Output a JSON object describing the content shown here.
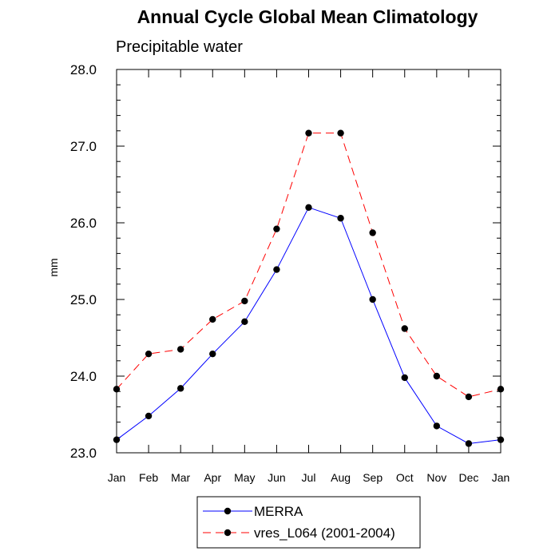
{
  "chart_data": {
    "type": "line",
    "title": "Annual Cycle Global Mean Climatology",
    "subtitle": "Precipitable water",
    "xlabel": "",
    "ylabel": "mm",
    "categories": [
      "Jan",
      "Feb",
      "Mar",
      "Apr",
      "May",
      "Jun",
      "Jul",
      "Aug",
      "Sep",
      "Oct",
      "Nov",
      "Dec",
      "Jan"
    ],
    "ylim": [
      23.0,
      28.0
    ],
    "yticks": [
      "23.0",
      "24.0",
      "25.0",
      "26.0",
      "27.0",
      "28.0"
    ],
    "grid": false,
    "legend_position": "bottom",
    "series": [
      {
        "name": "MERRA",
        "color": "#0000ff",
        "dash": "solid",
        "marker": "filled-circle",
        "values": [
          23.17,
          23.48,
          23.84,
          24.29,
          24.71,
          25.39,
          26.2,
          26.06,
          25.0,
          23.98,
          23.35,
          23.12,
          23.17
        ]
      },
      {
        "name": "vres_L064 (2001-2004)",
        "color": "#ff0000",
        "dash": "dashed",
        "marker": "filled-circle",
        "values": [
          23.83,
          24.29,
          24.35,
          24.74,
          24.98,
          25.92,
          27.17,
          27.17,
          25.87,
          24.62,
          24.0,
          23.73,
          23.83
        ]
      }
    ]
  }
}
